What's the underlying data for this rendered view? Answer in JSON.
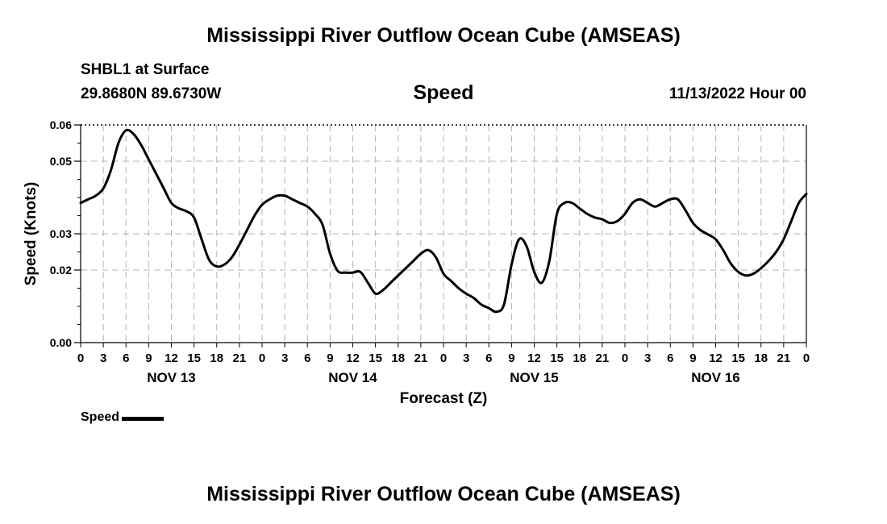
{
  "header": {
    "title": "Mississippi River Outflow Ocean Cube (AMSEAS)",
    "station": "SHBL1 at Surface",
    "coordinates": "29.8680N  89.6730W",
    "datetime": "11/13/2022 Hour 00"
  },
  "footer": {
    "title": "Mississippi River Outflow Ocean Cube (AMSEAS)"
  },
  "legend": {
    "label": "Speed",
    "color": "#000000"
  },
  "chart_data": {
    "type": "line",
    "title": "Speed",
    "xlabel": "Forecast (Z)",
    "ylabel": "Speed (Knots)",
    "ylim": [
      0,
      0.06
    ],
    "xlim": [
      0,
      96
    ],
    "y_ticks": [
      0.0,
      0.02,
      0.03,
      0.05,
      0.06
    ],
    "y_tick_labels": [
      "0.00",
      "0.02",
      "0.03",
      "0.05",
      "0.06"
    ],
    "x_tick_step_hours": 3,
    "x_tick_labels": [
      "0",
      "3",
      "6",
      "9",
      "12",
      "15",
      "18",
      "21",
      "0",
      "3",
      "6",
      "9",
      "12",
      "15",
      "18",
      "21",
      "0",
      "3",
      "6",
      "9",
      "12",
      "15",
      "18",
      "21",
      "0",
      "3",
      "6",
      "9",
      "12",
      "15",
      "18",
      "21",
      "0"
    ],
    "date_labels": [
      {
        "label": "NOV 13",
        "hour": 12
      },
      {
        "label": "NOV 14",
        "hour": 36
      },
      {
        "label": "NOV 15",
        "hour": 60
      },
      {
        "label": "NOV 16",
        "hour": 84
      }
    ],
    "grid": true,
    "series": [
      {
        "name": "Speed",
        "color": "#000000",
        "x": [
          0,
          1,
          2,
          3,
          4,
          5,
          6,
          7,
          8,
          9,
          10,
          11,
          12,
          13,
          14,
          15,
          16,
          17,
          18,
          19,
          20,
          21,
          22,
          23,
          24,
          25,
          26,
          27,
          28,
          29,
          30,
          31,
          32,
          33,
          34,
          35,
          36,
          37,
          38,
          39,
          40,
          41,
          42,
          43,
          44,
          45,
          46,
          47,
          48,
          49,
          50,
          51,
          52,
          53,
          54,
          55,
          56,
          57,
          58,
          59,
          60,
          61,
          62,
          63,
          64,
          65,
          66,
          67,
          68,
          69,
          70,
          71,
          72,
          73,
          74,
          75,
          76,
          77,
          78,
          79,
          80,
          81,
          82,
          83,
          84,
          85,
          86,
          87,
          88,
          89,
          90,
          91,
          92,
          93,
          94,
          95,
          96
        ],
        "values": [
          0.0385,
          0.0395,
          0.0405,
          0.0425,
          0.0475,
          0.055,
          0.0585,
          0.0575,
          0.0545,
          0.0505,
          0.0465,
          0.0425,
          0.0385,
          0.037,
          0.0362,
          0.0345,
          0.0285,
          0.0228,
          0.021,
          0.0215,
          0.0235,
          0.027,
          0.031,
          0.035,
          0.038,
          0.0395,
          0.0405,
          0.0405,
          0.0395,
          0.0385,
          0.0375,
          0.0355,
          0.0325,
          0.0245,
          0.0198,
          0.0193,
          0.0193,
          0.0195,
          0.0165,
          0.0135,
          0.0145,
          0.0165,
          0.0185,
          0.0205,
          0.0225,
          0.0245,
          0.0255,
          0.0235,
          0.019,
          0.017,
          0.015,
          0.0135,
          0.0123,
          0.0105,
          0.0095,
          0.0085,
          0.0105,
          0.0215,
          0.0285,
          0.0265,
          0.0195,
          0.0165,
          0.0225,
          0.0355,
          0.0385,
          0.0385,
          0.037,
          0.0355,
          0.0345,
          0.034,
          0.033,
          0.0335,
          0.0355,
          0.0385,
          0.0395,
          0.0385,
          0.0375,
          0.0385,
          0.0395,
          0.0395,
          0.0365,
          0.033,
          0.031,
          0.0298,
          0.0285,
          0.0255,
          0.0218,
          0.0195,
          0.0185,
          0.019,
          0.0205,
          0.0225,
          0.025,
          0.0285,
          0.0335,
          0.0385,
          0.041
        ]
      }
    ]
  }
}
